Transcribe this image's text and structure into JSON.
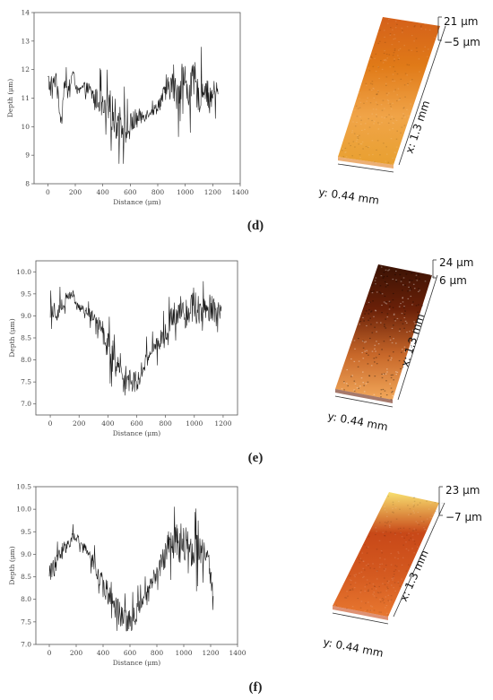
{
  "panels": [
    {
      "label": "(d)",
      "chart": {
        "type": "line",
        "xlabel": "Distance (μm)",
        "ylabel": "Depth (μm)",
        "xlim": [
          -100,
          1400
        ],
        "ylim": [
          8,
          14
        ],
        "xticks": [
          0,
          200,
          400,
          600,
          800,
          1000,
          1200,
          1400
        ],
        "yticks": [
          8,
          9,
          10,
          11,
          12,
          13,
          14
        ],
        "x_start": 0,
        "x_end": 1240,
        "profile": [
          [
            0,
            11.6
          ],
          [
            30,
            11.3
          ],
          [
            60,
            11.8
          ],
          [
            80,
            10.8
          ],
          [
            100,
            10.2
          ],
          [
            120,
            11.6
          ],
          [
            150,
            11.1
          ],
          [
            180,
            11.9
          ],
          [
            220,
            11.2
          ],
          [
            260,
            11.4
          ],
          [
            300,
            11.3
          ],
          [
            340,
            11.0
          ],
          [
            380,
            10.9
          ],
          [
            420,
            10.4
          ],
          [
            460,
            10.6
          ],
          [
            500,
            10.2
          ],
          [
            540,
            10.1
          ],
          [
            580,
            9.8
          ],
          [
            620,
            10.2
          ],
          [
            660,
            10.3
          ],
          [
            700,
            10.4
          ],
          [
            740,
            10.5
          ],
          [
            780,
            10.6
          ],
          [
            820,
            10.9
          ],
          [
            860,
            11.2
          ],
          [
            900,
            11.5
          ],
          [
            940,
            11.1
          ],
          [
            980,
            11.8
          ],
          [
            1020,
            11.2
          ],
          [
            1060,
            11.6
          ],
          [
            1100,
            11.0
          ],
          [
            1140,
            11.5
          ],
          [
            1180,
            10.9
          ],
          [
            1220,
            11.3
          ],
          [
            1240,
            11.1
          ]
        ],
        "noise": [
          0.7,
          0.25,
          1.3,
          0.25,
          1.3,
          0.7
        ],
        "range_min": 8.7,
        "range_max": 13.3
      },
      "afm": {
        "z_max": "21 μm",
        "z_min": "−5 μm",
        "x_len": "x: 1.3 mm",
        "y_len": "y: 0.44 mm"
      }
    },
    {
      "label": "(e)",
      "chart": {
        "type": "line",
        "xlabel": "Distance (μm)",
        "ylabel": "Depth (μm)",
        "xlim": [
          -100,
          1300
        ],
        "ylim": [
          6.75,
          10.25
        ],
        "xticks": [
          0,
          200,
          400,
          600,
          800,
          1000,
          1200
        ],
        "yticks": [
          7.0,
          7.5,
          8.0,
          8.5,
          9.0,
          9.5,
          10.0
        ],
        "tick_decimals": 1,
        "x_start": 0,
        "x_end": 1190,
        "profile": [
          [
            0,
            9.2
          ],
          [
            50,
            9.1
          ],
          [
            100,
            9.3
          ],
          [
            150,
            9.5
          ],
          [
            200,
            9.2
          ],
          [
            250,
            9.1
          ],
          [
            300,
            9.0
          ],
          [
            350,
            8.8
          ],
          [
            400,
            8.3
          ],
          [
            450,
            8.0
          ],
          [
            500,
            7.7
          ],
          [
            550,
            7.6
          ],
          [
            600,
            7.5
          ],
          [
            650,
            7.9
          ],
          [
            700,
            8.2
          ],
          [
            750,
            8.4
          ],
          [
            800,
            8.6
          ],
          [
            850,
            9.0
          ],
          [
            900,
            9.2
          ],
          [
            950,
            9.1
          ],
          [
            1000,
            9.3
          ],
          [
            1050,
            9.0
          ],
          [
            1100,
            9.2
          ],
          [
            1150,
            9.1
          ],
          [
            1190,
            9.0
          ]
        ],
        "noise": [
          0.45,
          0.15,
          0.75,
          0.25,
          0.8,
          0.5
        ],
        "range_min": 7.15,
        "range_max": 9.9
      },
      "afm": {
        "z_max": "24 μm",
        "z_min": "6 μm",
        "x_len": "x: 1.3 mm",
        "y_len": "y: 0.44 mm"
      }
    },
    {
      "label": "(f)",
      "chart": {
        "type": "line",
        "xlabel": "Distance (μm)",
        "ylabel": "Depth (μm)",
        "xlim": [
          -100,
          1400
        ],
        "ylim": [
          7.0,
          10.5
        ],
        "xticks": [
          0,
          200,
          400,
          600,
          800,
          1000,
          1200,
          1400
        ],
        "yticks": [
          7.0,
          7.5,
          8.0,
          8.5,
          9.0,
          9.5,
          10.0,
          10.5
        ],
        "tick_decimals": 1,
        "x_start": 0,
        "x_end": 1220,
        "profile": [
          [
            0,
            8.6
          ],
          [
            50,
            8.8
          ],
          [
            100,
            9.1
          ],
          [
            150,
            9.3
          ],
          [
            200,
            9.4
          ],
          [
            250,
            9.2
          ],
          [
            300,
            9.0
          ],
          [
            350,
            8.7
          ],
          [
            400,
            8.3
          ],
          [
            450,
            8.0
          ],
          [
            500,
            7.7
          ],
          [
            550,
            7.5
          ],
          [
            600,
            7.5
          ],
          [
            650,
            7.7
          ],
          [
            700,
            8.0
          ],
          [
            750,
            8.3
          ],
          [
            800,
            8.6
          ],
          [
            850,
            8.9
          ],
          [
            900,
            9.3
          ],
          [
            950,
            9.2
          ],
          [
            1000,
            9.3
          ],
          [
            1050,
            9.1
          ],
          [
            1100,
            9.2
          ],
          [
            1150,
            9.0
          ],
          [
            1200,
            8.6
          ],
          [
            1220,
            7.9
          ]
        ],
        "noise": [
          0.45,
          0.15,
          0.7,
          0.25,
          0.8,
          0.5
        ],
        "range_min": 7.3,
        "range_max": 10.1
      },
      "afm": {
        "z_max": "23 μm",
        "z_min": "−7 μm",
        "x_len": "x: 1.3 mm",
        "y_len": "y: 0.44 mm"
      }
    }
  ],
  "colors": {
    "line": "#1a1a1a",
    "axis": "#555555",
    "afm_d": [
      "#e8a030",
      "#f0a448",
      "#e07a18",
      "#d4601a"
    ],
    "afm_e": [
      "#f2a85a",
      "#c8682a",
      "#6a2008",
      "#3a1204"
    ],
    "afm_f": [
      "#e87830",
      "#d45a20",
      "#c84818",
      "#f8e070"
    ]
  }
}
